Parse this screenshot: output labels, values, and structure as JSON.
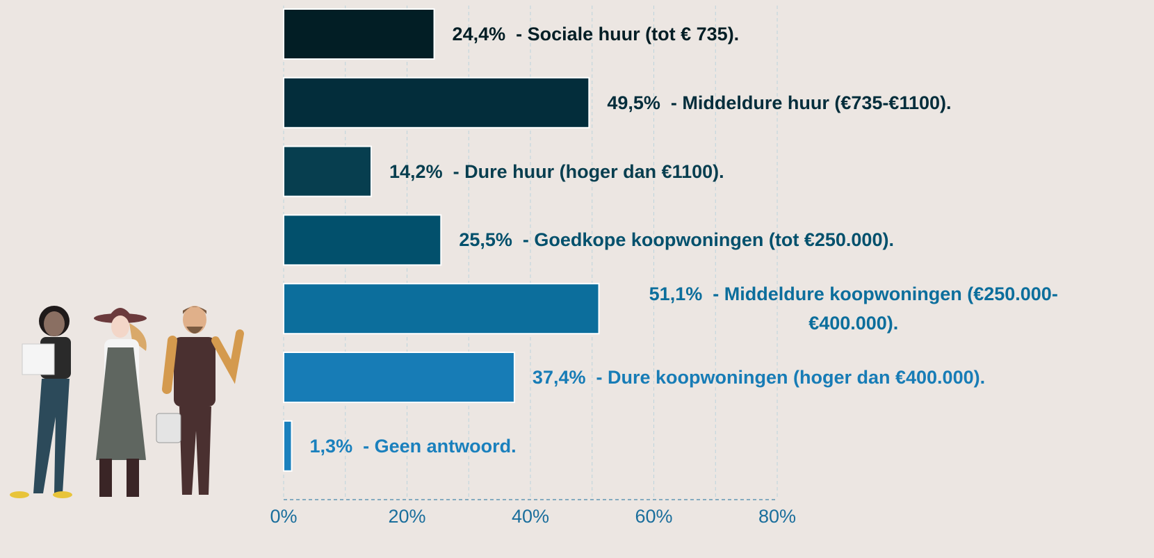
{
  "chart_data": {
    "type": "hbar",
    "categories": [
      "- Sociale huur (tot € 735).",
      "- Middeldure huur (€735-€1100).",
      "- Dure huur (hoger dan €1100).",
      "- Goedkope koopwoningen (tot €250.000).",
      "- Middeldure koopwoningen (€250.000-€400.000).",
      "- Dure koopwoningen (hoger dan €400.000).",
      "- Geen antwoord."
    ],
    "values": [
      24.4,
      49.5,
      14.2,
      25.5,
      51.1,
      37.4,
      1.3
    ],
    "value_labels": [
      "24,4%",
      "49,5%",
      "14,2%",
      "25,5%",
      "51,1%",
      "37,4%",
      "1,3%"
    ],
    "colors": [
      "#021e25",
      "#032d3b",
      "#073e4f",
      "#02506c",
      "#0c6e9c",
      "#177cb6",
      "#1a80bd"
    ],
    "xlim": [
      0,
      80
    ],
    "xticks": [
      {
        "value": 0,
        "label": "0%"
      },
      {
        "value": 20,
        "label": "20%"
      },
      {
        "value": 40,
        "label": "40%"
      },
      {
        "value": 60,
        "label": "60%"
      },
      {
        "value": 80,
        "label": "80%"
      }
    ],
    "minor_xticks": [
      10,
      30,
      50,
      70
    ],
    "grid": true
  }
}
